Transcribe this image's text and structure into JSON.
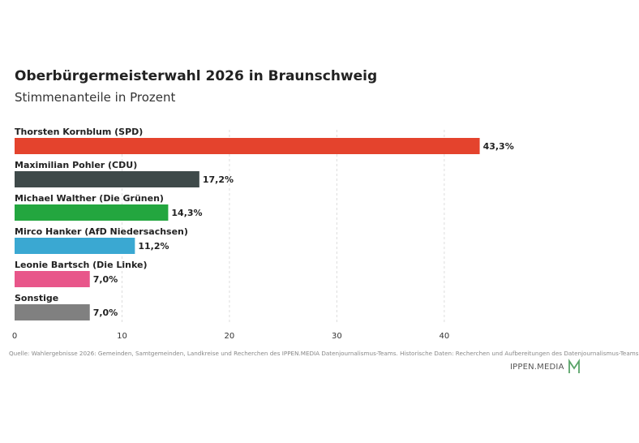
{
  "title": "Oberbürgermeisterwahl 2026 in Braunschweig",
  "subtitle": "Stimmenanteile in Prozent",
  "source": "Quelle: Wahlergebnisse 2026: Gemeinden, Samtgemeinden, Landkreise und Recherchen des IPPEN.MEDIA Datenjournalismus-Teams. Historische Daten: Recherchen und Aufbereitungen des Datenjournalismus-Teams",
  "logo": {
    "text": "IPPEN.MEDIA",
    "accent": "#5aa469"
  },
  "chart_data": {
    "type": "bar",
    "orientation": "horizontal",
    "categories": [
      "Thorsten Kornblum (SPD)",
      "Maximilian Pohler (CDU)",
      "Michael Walther (Die Grünen)",
      "Mirco Hanker (AfD Niedersachsen)",
      "Leonie Bartsch (Die Linke)",
      "Sonstige"
    ],
    "values": [
      43.3,
      17.2,
      14.3,
      11.2,
      7.0,
      7.0
    ],
    "value_labels": [
      "43,3%",
      "17,2%",
      "14,3%",
      "11,2%",
      "7,0%",
      "7,0%"
    ],
    "colors": [
      "#e4432d",
      "#3f4a4a",
      "#23a63f",
      "#3aa8d2",
      "#e8568a",
      "#808080"
    ],
    "xlim": [
      0,
      53.6
    ],
    "xticks": [
      0,
      10,
      20,
      30,
      40
    ],
    "grid": true
  }
}
